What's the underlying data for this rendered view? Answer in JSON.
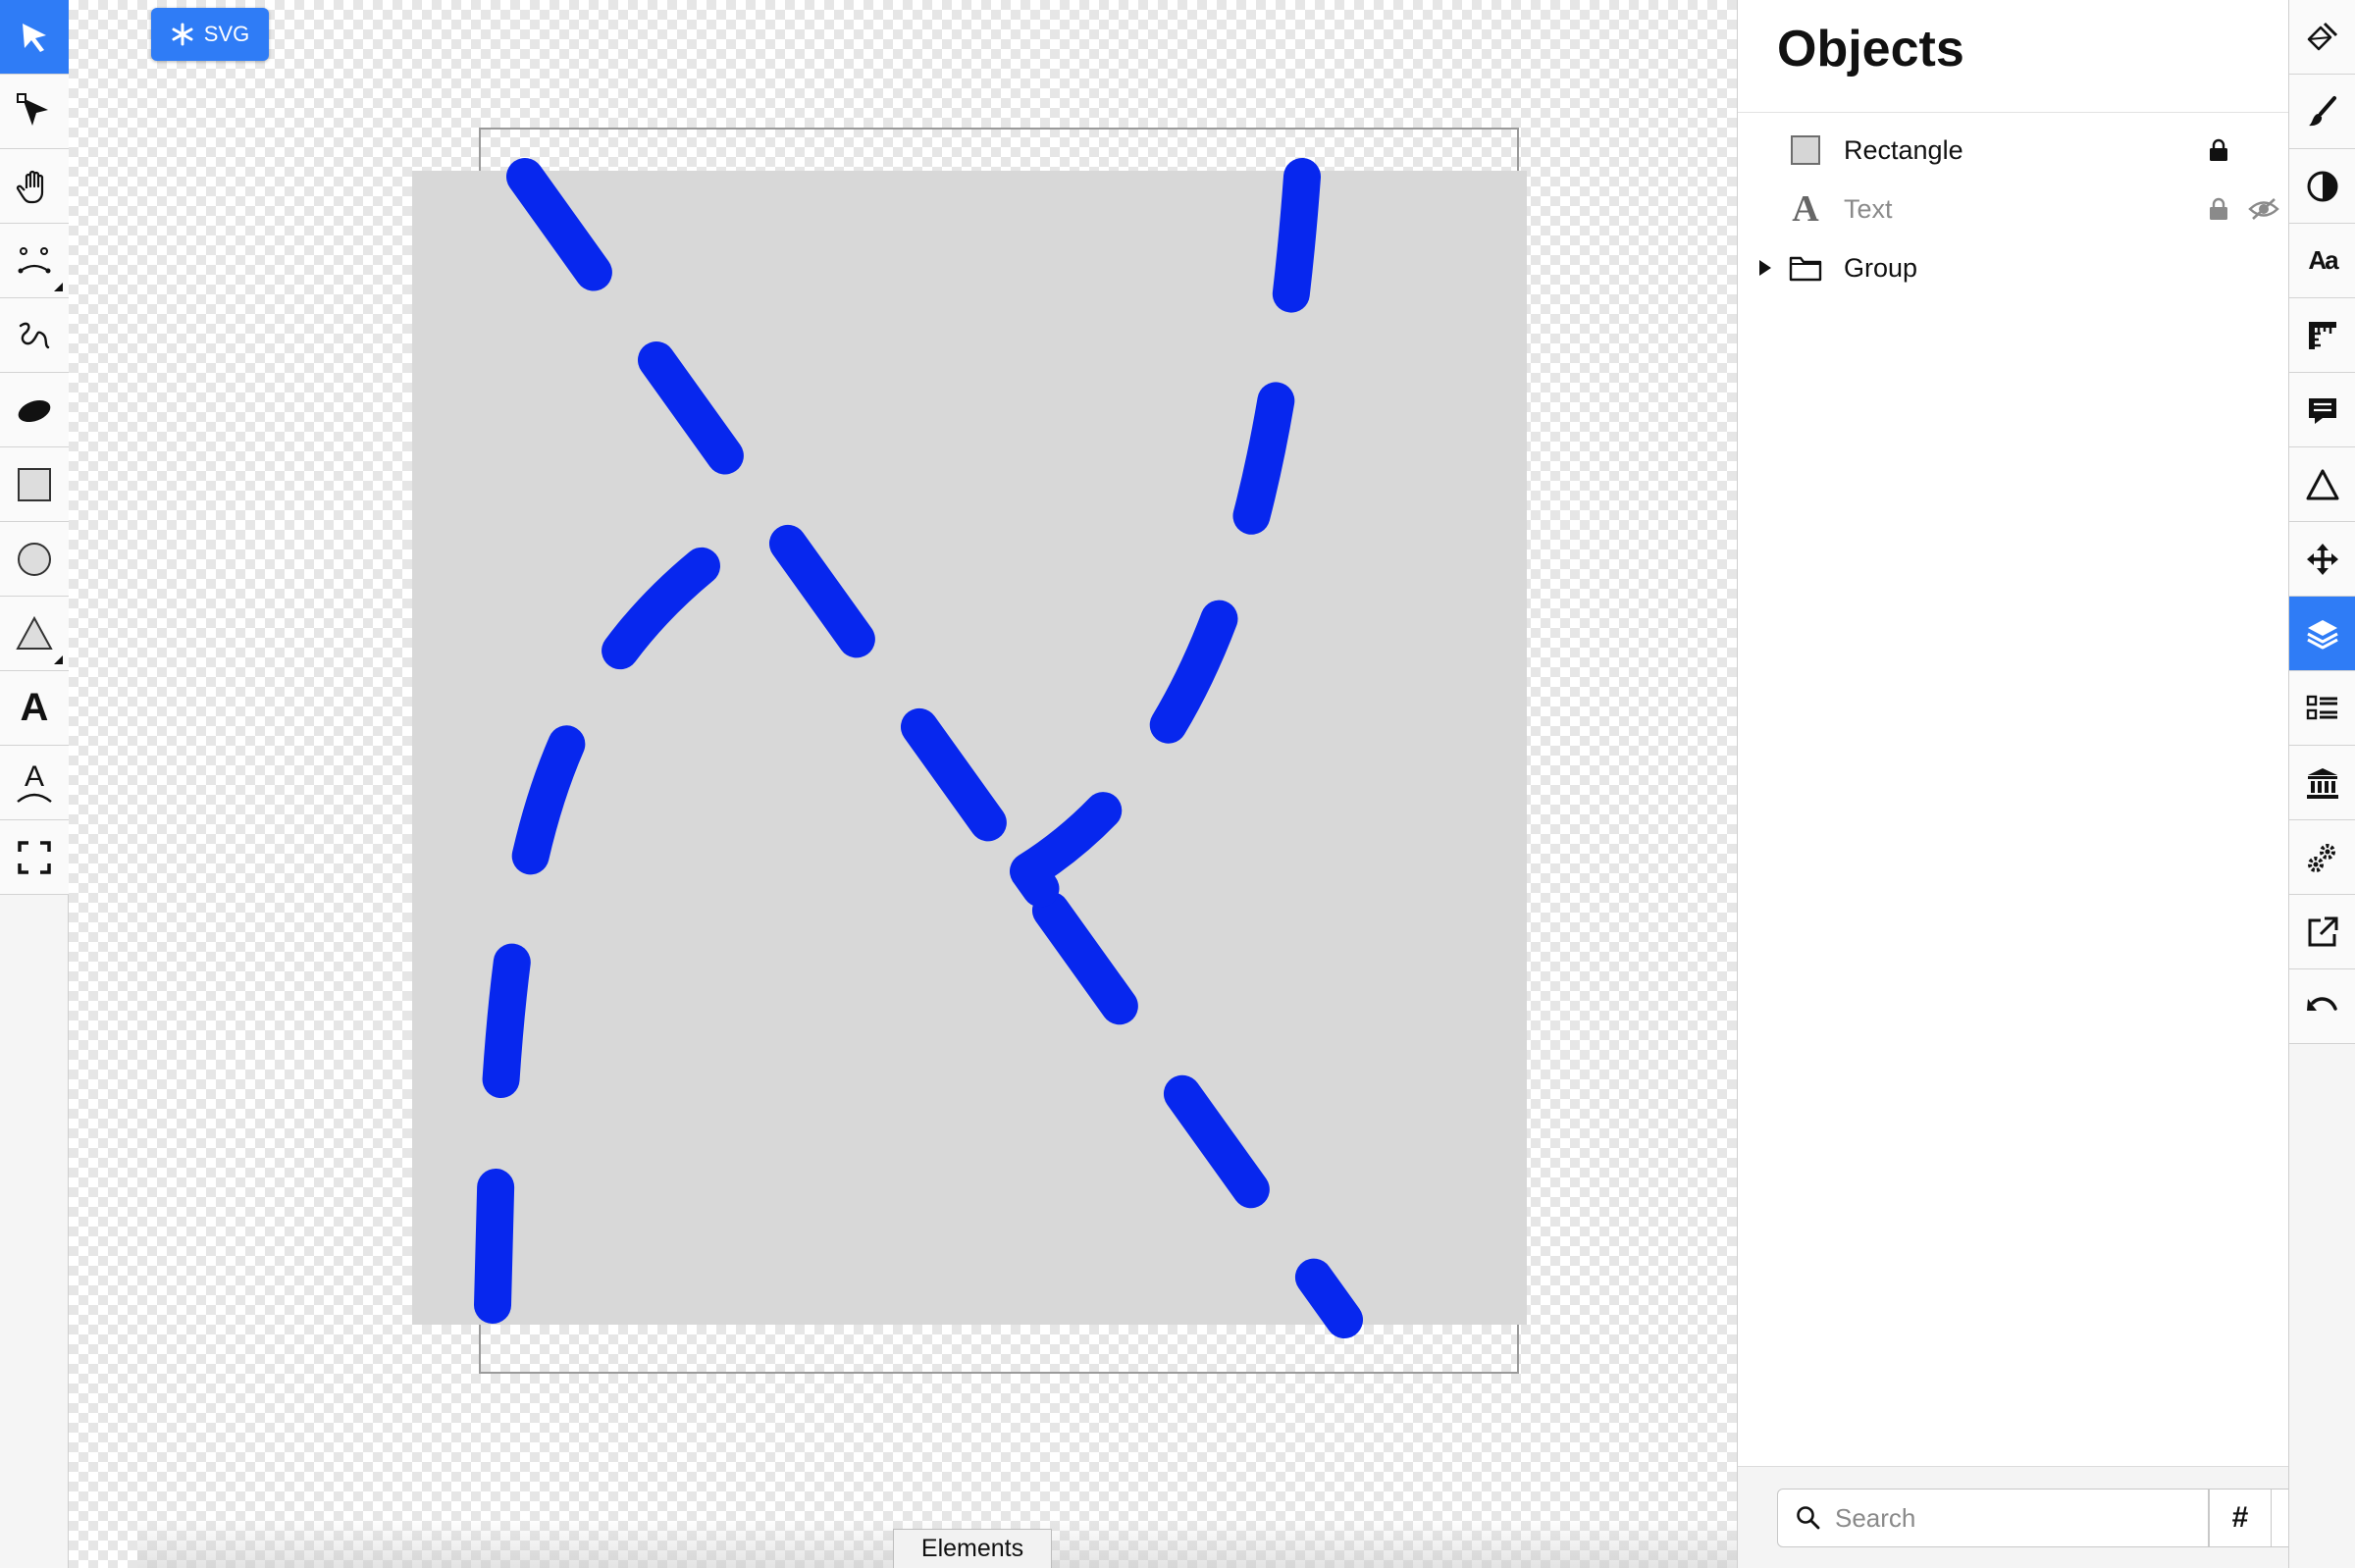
{
  "left_toolbar": {
    "tools": [
      {
        "name": "select-tool",
        "active": true
      },
      {
        "name": "node-edit-tool"
      },
      {
        "name": "pan-tool"
      },
      {
        "name": "mesh-tool",
        "submenu": true
      },
      {
        "name": "pencil-tool"
      },
      {
        "name": "brush-tool"
      },
      {
        "name": "rectangle-tool"
      },
      {
        "name": "ellipse-tool"
      },
      {
        "name": "triangle-tool",
        "submenu": true
      },
      {
        "name": "text-tool",
        "glyph": "A"
      },
      {
        "name": "text-on-path-tool",
        "glyph": "A"
      },
      {
        "name": "fit-view-tool"
      }
    ]
  },
  "canvas": {
    "badge_label": "SVG",
    "elements_tab": "Elements",
    "rect_fill": "#d8d8d8",
    "stroke_color": "#0727ee"
  },
  "objects_panel": {
    "title": "Objects",
    "items": [
      {
        "label": "Rectangle",
        "type": "rectangle",
        "locked": true,
        "hidden": false
      },
      {
        "label": "Text",
        "type": "text",
        "locked": true,
        "hidden": true
      },
      {
        "label": "Group",
        "type": "group",
        "collapsed": true
      }
    ],
    "search_placeholder": "Search",
    "search_value": "",
    "hash_label": "#",
    "add_label": "+"
  },
  "right_toolbar": {
    "tools": [
      "fill-tool",
      "stroke-tool",
      "opacity-tool",
      "font-tool",
      "ruler-tool",
      "comment-tool",
      "triangle-outline-tool",
      "move-tool",
      "layers-tool",
      "list-tool",
      "library-tool",
      "settings-tool",
      "export-tool",
      "undo-tool"
    ],
    "active": "layers-tool",
    "font_glyph": "Aa"
  },
  "colors": {
    "accent": "#2f7cf6",
    "stroke": "#0727ee"
  }
}
